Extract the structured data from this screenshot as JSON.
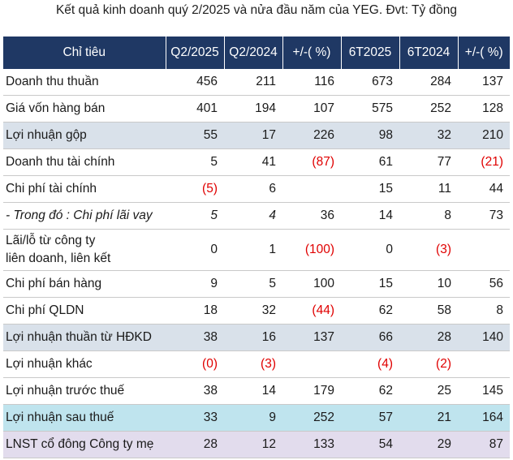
{
  "title": "Kết quả kinh doanh quý 2/2025 và nửa đầu năm của YEG. Đvt: Tỷ đồng",
  "columns": [
    "Chỉ tiêu",
    "Q2/2025",
    "Q2/2024",
    "+/-( %)",
    "6T2025",
    "6T2024",
    "+/-( %)"
  ],
  "rows": [
    {
      "label": "Doanh thu thuần",
      "cells": [
        "456",
        "211",
        "116",
        "673",
        "284",
        "137"
      ]
    },
    {
      "label": "Giá vốn hàng bán",
      "cells": [
        "401",
        "194",
        "107",
        "575",
        "252",
        "128"
      ]
    },
    {
      "label": "Lợi nhuận gộp",
      "cells": [
        "55",
        "17",
        "226",
        "98",
        "32",
        "210"
      ]
    },
    {
      "label": "Doanh thu tài chính",
      "cells": [
        "5",
        "41",
        "(87)",
        "61",
        "77",
        "(21)"
      ]
    },
    {
      "label": "Chi phí tài chính",
      "cells": [
        "(5)",
        "6",
        "",
        "15",
        "11",
        "44"
      ]
    },
    {
      "label": "- Trong đó : Chi phí lãi vay",
      "cells": [
        "5",
        "4",
        "36",
        "14",
        "8",
        "73"
      ]
    },
    {
      "label_line1": "Lãi/lỗ từ công ty",
      "label_line2": "liên doanh, liên kết",
      "cells": [
        "0",
        "1",
        "(100)",
        "0",
        "(3)",
        ""
      ]
    },
    {
      "label": "Chi phí bán hàng",
      "cells": [
        "9",
        "5",
        "100",
        "15",
        "10",
        "56"
      ]
    },
    {
      "label": "Chi phí QLDN",
      "cells": [
        "18",
        "32",
        "(44)",
        "62",
        "58",
        "8"
      ]
    },
    {
      "label": "Lợi nhuận thuần từ HĐKD",
      "cells": [
        "38",
        "16",
        "137",
        "66",
        "28",
        "140"
      ]
    },
    {
      "label": "Lợi nhuận khác",
      "cells": [
        "(0)",
        "(3)",
        "",
        "(4)",
        "(2)",
        ""
      ]
    },
    {
      "label": "Lợi nhuận trước thuế",
      "cells": [
        "38",
        "14",
        "179",
        "62",
        "25",
        "145"
      ]
    },
    {
      "label": "Lợi nhuận sau thuế",
      "cells": [
        "33",
        "9",
        "252",
        "57",
        "21",
        "164"
      ]
    },
    {
      "label": "LNST cổ đông Công ty mẹ",
      "cells": [
        "28",
        "12",
        "133",
        "54",
        "29",
        "87"
      ]
    }
  ],
  "colors": {
    "header_bg": "#1f3864",
    "highlight_gray": "#d9e1ea",
    "highlight_teal": "#bfe4ee",
    "highlight_lavender": "#e2dced",
    "negative": "#e00000"
  }
}
